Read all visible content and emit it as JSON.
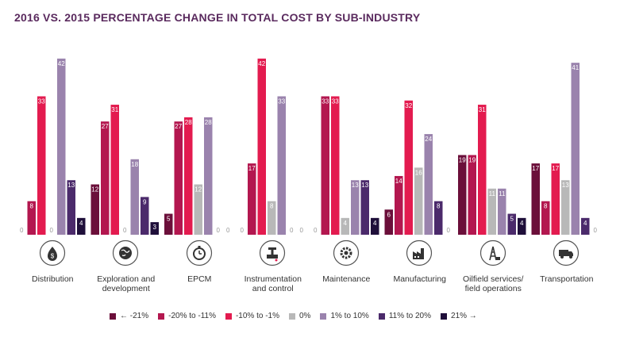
{
  "title": "2016 VS. 2015 PERCENTAGE CHANGE IN TOTAL COST BY SUB-INDUSTRY",
  "chart_data": {
    "type": "bar",
    "categories": [
      "Distribution",
      "Exploration and development",
      "EPCM",
      "Instrumentation and control",
      "Maintenance",
      "Manufacturing",
      "Oilfield services/ field operations",
      "Transportation"
    ],
    "category_lines": [
      [
        "Distribution"
      ],
      [
        "Exploration and",
        "development"
      ],
      [
        "EPCM"
      ],
      [
        "Instrumentation",
        "and control"
      ],
      [
        "Maintenance"
      ],
      [
        "Manufacturing"
      ],
      [
        "Oilfield services/",
        "field operations"
      ],
      [
        "Transportation"
      ]
    ],
    "series": [
      {
        "name": "← -21%",
        "color": "#6b0f3a",
        "values": [
          0,
          12,
          5,
          0,
          0,
          6,
          19,
          17
        ]
      },
      {
        "name": "-20% to -11%",
        "color": "#b3174f",
        "values": [
          8,
          27,
          27,
          17,
          33,
          14,
          19,
          8
        ]
      },
      {
        "name": "-10% to -1%",
        "color": "#e31b4f",
        "values": [
          33,
          31,
          28,
          42,
          33,
          32,
          31,
          17
        ]
      },
      {
        "name": "0%",
        "color": "#b8b8b8",
        "values": [
          0,
          0,
          12,
          8,
          4,
          16,
          11,
          13
        ]
      },
      {
        "name": "1% to 10%",
        "color": "#9a83ad",
        "values": [
          42,
          18,
          28,
          33,
          13,
          24,
          11,
          41
        ]
      },
      {
        "name": "11% to 20%",
        "color": "#4b2a6b",
        "values": [
          13,
          9,
          0,
          0,
          13,
          8,
          5,
          4
        ]
      },
      {
        "name": "21% →",
        "color": "#1f0f3a",
        "values": [
          4,
          3,
          0,
          0,
          4,
          0,
          4,
          0
        ]
      }
    ],
    "ylim": [
      0,
      45
    ],
    "grid": false,
    "legend": "bottom"
  },
  "icons": [
    "money-drop-icon",
    "globe-icon",
    "stopwatch-icon",
    "valve-icon",
    "gear-wrench-icon",
    "factory-icon",
    "oil-derrick-icon",
    "truck-icon"
  ]
}
